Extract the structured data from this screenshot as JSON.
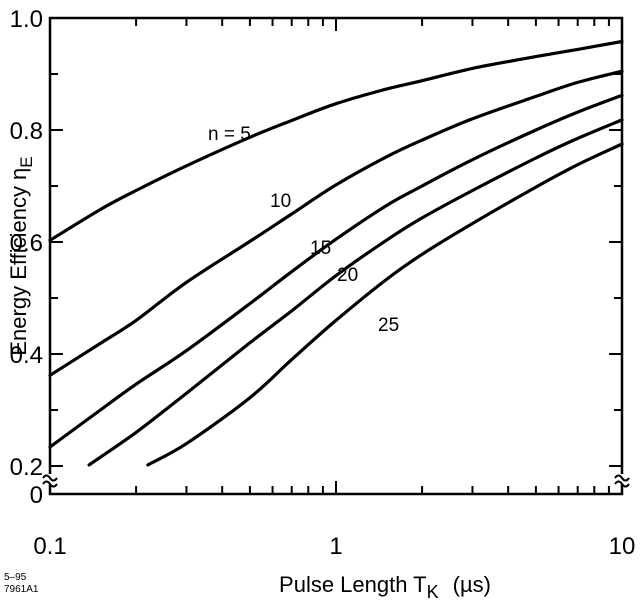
{
  "chart_data": {
    "type": "line",
    "xlabel": "Pulse Length T",
    "xlabel_sub": "K",
    "xlabel_unit": "(µs)",
    "ylabel": "Energy  Efficiency η",
    "ylabel_sub": "E",
    "x_scale": "log",
    "xlim": [
      0.1,
      10
    ],
    "ylim": [
      0,
      1.0
    ],
    "y_axis_break": "between 0 and 0.2",
    "x_ticks": [
      {
        "value": 0.1,
        "label": "0.1"
      },
      {
        "value": 1,
        "label": "1"
      },
      {
        "value": 10,
        "label": "10"
      }
    ],
    "y_ticks": [
      {
        "value": 0,
        "label": "0"
      },
      {
        "value": 0.2,
        "label": "0.2"
      },
      {
        "value": 0.4,
        "label": "0.4"
      },
      {
        "value": 0.6,
        "label": "0.6"
      },
      {
        "value": 0.8,
        "label": "0.8"
      },
      {
        "value": 1.0,
        "label": "1.0"
      }
    ],
    "series": [
      {
        "name": "n = 5",
        "x": [
          0.1,
          0.15,
          0.2,
          0.3,
          0.5,
          0.7,
          1,
          1.5,
          2,
          3,
          5,
          7,
          10
        ],
        "y": [
          0.603,
          0.658,
          0.692,
          0.736,
          0.787,
          0.817,
          0.847,
          0.873,
          0.888,
          0.91,
          0.931,
          0.944,
          0.958
        ]
      },
      {
        "name": "10",
        "x": [
          0.1,
          0.15,
          0.2,
          0.3,
          0.5,
          0.7,
          1,
          1.5,
          2,
          3,
          5,
          7,
          10
        ],
        "y": [
          0.362,
          0.419,
          0.46,
          0.528,
          0.601,
          0.65,
          0.702,
          0.752,
          0.782,
          0.82,
          0.86,
          0.885,
          0.905
        ]
      },
      {
        "name": "15",
        "x": [
          0.1,
          0.15,
          0.2,
          0.3,
          0.5,
          0.7,
          1,
          1.5,
          2,
          3,
          5,
          7,
          10
        ],
        "y": [
          0.234,
          0.3,
          0.346,
          0.406,
          0.49,
          0.547,
          0.605,
          0.665,
          0.7,
          0.747,
          0.8,
          0.832,
          0.862
        ]
      },
      {
        "name": "20",
        "x": [
          0.137,
          0.2,
          0.3,
          0.5,
          0.7,
          1,
          1.5,
          2,
          3,
          5,
          7,
          10
        ],
        "y": [
          0.202,
          0.26,
          0.33,
          0.42,
          0.477,
          0.54,
          0.603,
          0.643,
          0.692,
          0.75,
          0.785,
          0.818
        ]
      },
      {
        "name": "25",
        "x": [
          0.22,
          0.3,
          0.5,
          0.7,
          1,
          1.5,
          2,
          3,
          5,
          7,
          10
        ],
        "y": [
          0.202,
          0.24,
          0.322,
          0.39,
          0.46,
          0.533,
          0.578,
          0.633,
          0.698,
          0.738,
          0.775
        ]
      }
    ],
    "figure_code": [
      "5–95",
      "7961A1"
    ]
  }
}
